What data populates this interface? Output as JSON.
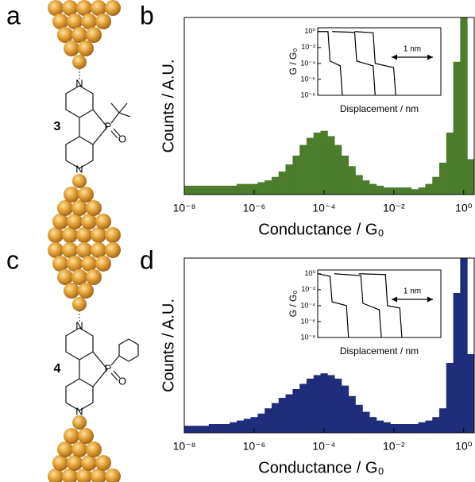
{
  "figure": {
    "panel_labels": [
      "a",
      "b",
      "c",
      "d"
    ],
    "molecules": [
      {
        "number": "3",
        "atoms": [
          "N",
          "P",
          "O",
          "N"
        ]
      },
      {
        "number": "4",
        "atoms": [
          "N",
          "P",
          "O",
          "N"
        ]
      }
    ]
  },
  "chart_data": [
    {
      "type": "histogram",
      "x_label": "Conductance / G₀",
      "y_label": "Counts / A.U.",
      "xscale": "log",
      "xlim": [
        1e-08,
        2
      ],
      "ylim": [
        0,
        100
      ],
      "xticks": [
        {
          "value": 1e-08,
          "label": "10⁻⁸"
        },
        {
          "value": 1e-06,
          "label": "10⁻⁶"
        },
        {
          "value": 0.0001,
          "label": "10⁻⁴"
        },
        {
          "value": 0.01,
          "label": "10⁻²"
        },
        {
          "value": 1,
          "label": "10⁰"
        }
      ],
      "x": [
        1e-08,
        1.6e-08,
        2.5e-08,
        4e-08,
        6.3e-08,
        1e-07,
        1.6e-07,
        2.5e-07,
        4e-07,
        6.3e-07,
        1e-06,
        1.6e-06,
        2.5e-06,
        4e-06,
        6.3e-06,
        1e-05,
        1.6e-05,
        2.5e-05,
        4e-05,
        6.3e-05,
        0.0001,
        0.00016,
        0.00025,
        0.0004,
        0.00063,
        0.001,
        0.0016,
        0.0025,
        0.004,
        0.0063,
        0.01,
        0.016,
        0.025,
        0.04,
        0.063,
        0.1,
        0.16,
        0.25,
        0.4,
        0.63,
        1,
        1.6
      ],
      "series": [
        {
          "color": "#4b7d2d",
          "values": [
            5,
            5,
            5,
            5,
            5,
            5,
            5,
            5,
            6,
            6,
            6,
            7,
            8,
            10,
            13,
            17,
            22,
            28,
            32,
            35,
            36,
            33,
            28,
            22,
            16,
            11,
            8,
            6,
            5,
            4,
            4,
            4,
            4,
            3,
            4,
            6,
            10,
            18,
            35,
            75,
            100,
            20
          ]
        }
      ],
      "inset": {
        "type": "line",
        "x_label": "Displacement / nm",
        "y_label": "G / G₀",
        "yscale": "log",
        "scale_bar": "1 nm",
        "xlim": [
          0,
          3
        ],
        "ylim": [
          1e-08,
          3
        ],
        "yticks": [
          {
            "value": 1,
            "label": "10⁰"
          },
          {
            "value": 0.01,
            "label": "10⁻²"
          },
          {
            "value": 0.0001,
            "label": "10⁻⁴"
          },
          {
            "value": 1e-06,
            "label": "10⁻⁶"
          },
          {
            "value": 1e-08,
            "label": "10⁻⁸"
          }
        ],
        "series": [
          {
            "color": "#000000",
            "x": [
              0,
              0.25,
              0.3,
              0.55,
              0.6
            ],
            "values": [
              1,
              1,
              0.0002,
              5e-05,
              1e-08
            ]
          },
          {
            "color": "#000000",
            "x": [
              0.35,
              0.9,
              0.95,
              1.35,
              1.4
            ],
            "values": [
              1,
              0.8,
              0.0002,
              5e-05,
              1e-08
            ]
          },
          {
            "color": "#000000",
            "x": [
              0.9,
              1.35,
              1.4,
              1.85,
              1.9
            ],
            "values": [
              1,
              0.7,
              0.0001,
              3e-05,
              1e-08
            ]
          }
        ]
      }
    },
    {
      "type": "histogram",
      "x_label": "Conductance / G₀",
      "y_label": "Counts / A.U.",
      "xscale": "log",
      "xlim": [
        1e-08,
        2
      ],
      "ylim": [
        0,
        100
      ],
      "xticks": [
        {
          "value": 1e-08,
          "label": "10⁻⁸"
        },
        {
          "value": 1e-06,
          "label": "10⁻⁶"
        },
        {
          "value": 0.0001,
          "label": "10⁻⁴"
        },
        {
          "value": 0.01,
          "label": "10⁻²"
        },
        {
          "value": 1,
          "label": "10⁰"
        }
      ],
      "x": [
        1e-08,
        1.6e-08,
        2.5e-08,
        4e-08,
        6.3e-08,
        1e-07,
        1.6e-07,
        2.5e-07,
        4e-07,
        6.3e-07,
        1e-06,
        1.6e-06,
        2.5e-06,
        4e-06,
        6.3e-06,
        1e-05,
        1.6e-05,
        2.5e-05,
        4e-05,
        6.3e-05,
        0.0001,
        0.00016,
        0.00025,
        0.0004,
        0.00063,
        0.001,
        0.0016,
        0.0025,
        0.004,
        0.0063,
        0.01,
        0.016,
        0.025,
        0.04,
        0.063,
        0.1,
        0.16,
        0.25,
        0.4,
        0.63,
        1,
        1.6
      ],
      "series": [
        {
          "color": "#1f2d7a",
          "values": [
            4,
            4,
            4,
            4,
            5,
            5,
            5,
            6,
            7,
            8,
            9,
            11,
            14,
            17,
            20,
            22,
            25,
            28,
            31,
            33,
            34,
            33,
            31,
            27,
            21,
            16,
            12,
            9,
            7,
            6,
            5,
            5,
            5,
            5,
            6,
            7,
            9,
            14,
            40,
            80,
            100,
            45
          ]
        }
      ],
      "inset": {
        "type": "line",
        "x_label": "Displacement / nm",
        "y_label": "G / G₀",
        "yscale": "log",
        "scale_bar": "1 nm",
        "xlim": [
          0,
          3
        ],
        "ylim": [
          1e-08,
          3
        ],
        "yticks": [
          {
            "value": 1,
            "label": "10⁰"
          },
          {
            "value": 0.01,
            "label": "10⁻²"
          },
          {
            "value": 0.0001,
            "label": "10⁻⁴"
          },
          {
            "value": 1e-06,
            "label": "10⁻⁶"
          },
          {
            "value": 1e-08,
            "label": "10⁻⁸"
          }
        ],
        "series": [
          {
            "color": "#000000",
            "x": [
              0,
              0.3,
              0.35,
              0.7,
              0.75
            ],
            "values": [
              1,
              0.5,
              0.0003,
              0.0001,
              1e-08
            ]
          },
          {
            "color": "#000000",
            "x": [
              0.4,
              1.05,
              1.1,
              1.5,
              1.55
            ],
            "values": [
              1,
              0.6,
              0.0002,
              3e-05,
              1e-08
            ]
          },
          {
            "color": "#000000",
            "x": [
              1.0,
              1.65,
              1.7,
              2.0,
              2.05
            ],
            "values": [
              1,
              0.8,
              0.0001,
              5e-05,
              1e-08
            ]
          }
        ]
      }
    }
  ]
}
